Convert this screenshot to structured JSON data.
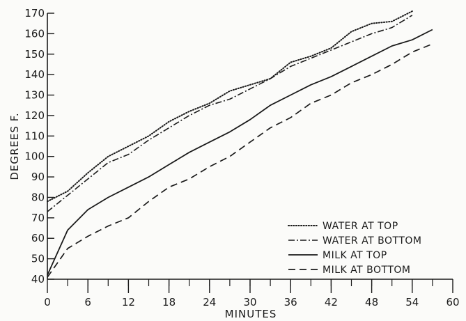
{
  "chart_data": {
    "type": "line",
    "title": "",
    "xlabel": "MINUTES",
    "ylabel": "DEGREES F.",
    "xlim": [
      0,
      60
    ],
    "ylim": [
      40,
      170
    ],
    "xticks": [
      0,
      6,
      12,
      18,
      24,
      30,
      36,
      42,
      48,
      54,
      60
    ],
    "xtick_labels": [
      "0",
      "6",
      "12",
      "18",
      "24",
      "30",
      "36",
      "42",
      "48",
      "54",
      "60"
    ],
    "yticks": [
      40,
      50,
      60,
      70,
      80,
      90,
      100,
      110,
      120,
      130,
      140,
      150,
      160,
      170
    ],
    "ytick_labels": [
      "40",
      "50",
      "60",
      "70",
      "80",
      "90",
      "100",
      "110",
      "120",
      "130",
      "140",
      "150",
      "160",
      "170"
    ],
    "grid": false,
    "legend_position": "bottom-right",
    "series": [
      {
        "name": "WATER AT TOP",
        "style": "dotted",
        "x": [
          0,
          3,
          6,
          9,
          12,
          15,
          18,
          21,
          24,
          27,
          30,
          33,
          36,
          39,
          42,
          45,
          48,
          51,
          54
        ],
        "y": [
          78,
          83,
          92,
          100,
          105,
          110,
          117,
          122,
          126,
          132,
          135,
          138,
          146,
          149,
          153,
          161,
          165,
          166,
          171
        ]
      },
      {
        "name": "WATER AT BOTTOM",
        "style": "dash-dot",
        "x": [
          0,
          3,
          6,
          9,
          12,
          15,
          18,
          21,
          24,
          27,
          30,
          33,
          36,
          39,
          42,
          45,
          48,
          51,
          54
        ],
        "y": [
          73,
          81,
          89,
          97,
          101,
          108,
          114,
          120,
          125,
          128,
          133,
          138,
          144,
          148,
          152,
          156,
          160,
          163,
          169
        ]
      },
      {
        "name": "MILK AT TOP",
        "style": "solid",
        "x": [
          0,
          3,
          6,
          9,
          12,
          15,
          18,
          21,
          24,
          27,
          30,
          33,
          36,
          39,
          42,
          45,
          48,
          51,
          54,
          57
        ],
        "y": [
          42,
          64,
          74,
          80,
          85,
          90,
          96,
          102,
          107,
          112,
          118,
          125,
          130,
          135,
          139,
          144,
          149,
          154,
          157,
          162
        ]
      },
      {
        "name": "MILK AT BOTTOM",
        "style": "dashed",
        "x": [
          0,
          3,
          6,
          9,
          12,
          15,
          18,
          21,
          24,
          27,
          30,
          33,
          36,
          39,
          42,
          45,
          48,
          51,
          54,
          57
        ],
        "y": [
          41,
          55,
          61,
          66,
          70,
          78,
          85,
          89,
          95,
          100,
          107,
          114,
          119,
          126,
          130,
          136,
          140,
          145,
          151,
          155
        ]
      }
    ]
  }
}
